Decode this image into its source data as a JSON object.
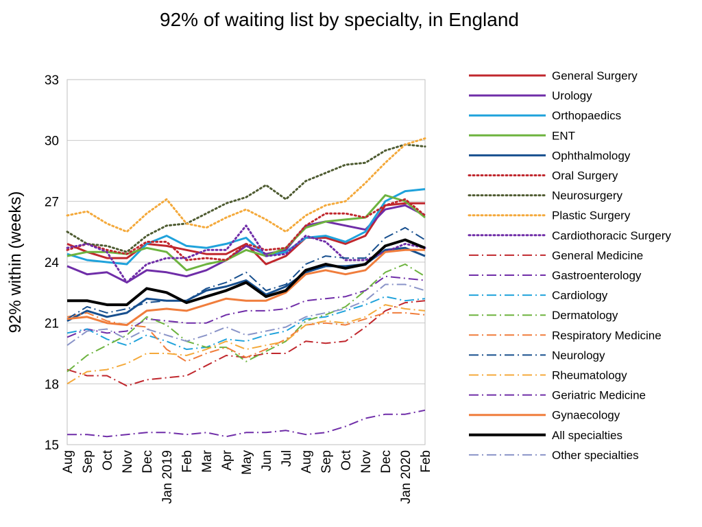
{
  "chart_data": {
    "type": "line",
    "title": "92% of waiting list by specialty, in England",
    "xlabel": "",
    "ylabel": "92% within (weeks)",
    "ylim": [
      15,
      33
    ],
    "yticks": [
      15,
      18,
      21,
      24,
      27,
      30,
      33
    ],
    "grid": "horizontal",
    "legend_position": "right",
    "x": [
      "Aug",
      "Sep",
      "Oct",
      "Nov",
      "Dec",
      "Jan 2019",
      "Feb",
      "Mar",
      "Apr",
      "May",
      "Jun",
      "Jul",
      "Aug",
      "Sep",
      "Oct",
      "Nov",
      "Dec",
      "Jan 2020",
      "Feb"
    ],
    "series": [
      {
        "name": "General Surgery",
        "color": "#C0272D",
        "dash": "solid",
        "width": 3,
        "values": [
          24.9,
          24.5,
          24.2,
          24.2,
          24.9,
          24.8,
          24.6,
          24.4,
          24.4,
          24.9,
          23.9,
          24.3,
          25.2,
          25.2,
          24.9,
          25.3,
          26.8,
          26.9,
          26.9
        ]
      },
      {
        "name": "Urology",
        "color": "#6F2DA8",
        "dash": "solid",
        "width": 3,
        "values": [
          23.8,
          23.4,
          23.5,
          23.0,
          23.6,
          23.5,
          23.3,
          23.6,
          24.1,
          24.8,
          24.4,
          24.6,
          25.8,
          26.0,
          25.8,
          25.6,
          26.6,
          26.8,
          26.3
        ]
      },
      {
        "name": "Orthopaedics",
        "color": "#1FA2DB",
        "dash": "solid",
        "width": 3,
        "values": [
          24.4,
          24.1,
          24.0,
          23.9,
          24.9,
          25.3,
          24.8,
          24.7,
          24.9,
          25.2,
          24.3,
          24.5,
          25.2,
          25.3,
          25.0,
          25.5,
          27.0,
          27.5,
          27.6
        ]
      },
      {
        "name": "ENT",
        "color": "#6DB33F",
        "dash": "solid",
        "width": 3,
        "values": [
          24.3,
          24.5,
          24.5,
          24.4,
          24.7,
          24.5,
          23.6,
          23.9,
          24.1,
          24.6,
          24.3,
          24.7,
          25.7,
          26.0,
          26.1,
          26.2,
          27.3,
          27.0,
          26.2
        ]
      },
      {
        "name": "Ophthalmology",
        "color": "#174F8E",
        "dash": "solid",
        "width": 3,
        "values": [
          21.1,
          21.6,
          21.3,
          21.5,
          22.2,
          22.1,
          22.1,
          22.6,
          22.8,
          23.1,
          22.4,
          22.8,
          23.5,
          23.8,
          23.8,
          23.9,
          24.6,
          24.7,
          24.3
        ]
      },
      {
        "name": "Oral Surgery",
        "color": "#C0272D",
        "dash": "dot",
        "width": 3,
        "values": [
          24.6,
          24.9,
          24.6,
          24.4,
          25.0,
          25.0,
          24.1,
          24.2,
          24.1,
          24.9,
          24.6,
          24.7,
          25.8,
          26.4,
          26.4,
          26.2,
          26.8,
          27.1,
          26.3
        ]
      },
      {
        "name": "Neurosurgery",
        "color": "#4E5B31",
        "dash": "dot",
        "width": 3,
        "values": [
          25.5,
          24.9,
          24.8,
          24.5,
          25.3,
          25.8,
          25.9,
          26.4,
          26.9,
          27.2,
          27.8,
          27.1,
          28.0,
          28.4,
          28.8,
          28.9,
          29.5,
          29.8,
          29.7
        ]
      },
      {
        "name": "Plastic Surgery",
        "color": "#F4A93B",
        "dash": "dot",
        "width": 3,
        "values": [
          26.3,
          26.5,
          25.9,
          25.5,
          26.4,
          27.1,
          25.9,
          25.7,
          26.2,
          26.6,
          26.1,
          25.5,
          26.3,
          26.8,
          27.0,
          27.9,
          28.9,
          29.8,
          30.1
        ]
      },
      {
        "name": "Cardiothoracic Surgery",
        "color": "#6F2DA8",
        "dash": "dot",
        "width": 3,
        "values": [
          24.7,
          24.9,
          24.5,
          23.0,
          23.9,
          24.2,
          24.2,
          24.6,
          24.6,
          25.8,
          24.3,
          24.4,
          25.3,
          25.0,
          24.1,
          24.1,
          24.5,
          24.9,
          24.7
        ]
      },
      {
        "name": "General Medicine",
        "color": "#C0272D",
        "dash": "dashdot",
        "width": 2,
        "values": [
          18.7,
          18.4,
          18.4,
          17.9,
          18.2,
          18.3,
          18.4,
          18.9,
          19.4,
          19.3,
          19.5,
          19.5,
          20.1,
          20.0,
          20.1,
          20.8,
          21.6,
          22.0,
          22.1
        ]
      },
      {
        "name": "Gastroenterology",
        "color": "#6F2DA8",
        "dash": "dashdot",
        "width": 2,
        "values": [
          20.3,
          20.7,
          20.5,
          20.6,
          21.2,
          21.1,
          21.0,
          21.0,
          21.4,
          21.6,
          21.6,
          21.7,
          22.1,
          22.2,
          22.3,
          22.6,
          23.3,
          23.2,
          23.1
        ]
      },
      {
        "name": "Cardiology",
        "color": "#1FA2DB",
        "dash": "dashdot",
        "width": 2,
        "values": [
          20.5,
          20.7,
          20.2,
          19.9,
          20.4,
          20.1,
          19.7,
          19.8,
          20.2,
          20.1,
          20.4,
          20.6,
          21.2,
          21.3,
          21.6,
          21.9,
          22.3,
          22.1,
          22.2
        ]
      },
      {
        "name": "Dermatology",
        "color": "#6DB33F",
        "dash": "dashdot",
        "width": 2,
        "values": [
          18.6,
          19.4,
          19.9,
          20.4,
          21.3,
          20.9,
          20.1,
          19.8,
          19.8,
          19.1,
          19.6,
          20.1,
          21.1,
          21.4,
          21.8,
          22.6,
          23.5,
          23.9,
          23.3
        ]
      },
      {
        "name": "Respiratory Medicine",
        "color": "#F07D3C",
        "dash": "dashdot",
        "width": 2,
        "values": [
          21.3,
          21.5,
          21.1,
          20.9,
          20.8,
          19.7,
          19.1,
          19.5,
          19.8,
          19.3,
          19.7,
          20.2,
          20.9,
          21.0,
          20.9,
          21.2,
          21.5,
          21.5,
          21.4
        ]
      },
      {
        "name": "Neurology",
        "color": "#174F8E",
        "dash": "dashdot",
        "width": 2,
        "values": [
          21.2,
          21.8,
          21.5,
          21.7,
          22.0,
          22.1,
          22.1,
          22.7,
          23.0,
          23.5,
          22.6,
          22.9,
          23.9,
          24.3,
          24.2,
          24.2,
          25.2,
          25.7,
          25.1
        ]
      },
      {
        "name": "Rheumatology",
        "color": "#F4A93B",
        "dash": "dashdot",
        "width": 2,
        "values": [
          18.0,
          18.6,
          18.7,
          19.0,
          19.5,
          19.5,
          19.4,
          19.7,
          20.1,
          19.7,
          19.9,
          20.1,
          20.9,
          21.1,
          21.0,
          21.3,
          21.9,
          21.7,
          21.6
        ]
      },
      {
        "name": "Geriatric Medicine",
        "color": "#6F2DA8",
        "dash": "dashdot",
        "width": 2,
        "values": [
          15.5,
          15.5,
          15.4,
          15.5,
          15.6,
          15.6,
          15.5,
          15.6,
          15.4,
          15.6,
          15.6,
          15.7,
          15.5,
          15.6,
          15.9,
          16.3,
          16.5,
          16.5,
          16.7
        ]
      },
      {
        "name": "Gynaecology",
        "color": "#F07D3C",
        "dash": "solid",
        "width": 3,
        "values": [
          21.2,
          21.3,
          21.0,
          20.9,
          21.6,
          21.7,
          21.6,
          21.9,
          22.2,
          22.1,
          22.1,
          22.5,
          23.4,
          23.6,
          23.4,
          23.6,
          24.5,
          24.6,
          24.6
        ]
      },
      {
        "name": "All specialties",
        "color": "#000000",
        "dash": "solid",
        "width": 4,
        "values": [
          22.1,
          22.1,
          21.9,
          21.9,
          22.7,
          22.5,
          22.0,
          22.3,
          22.6,
          23.0,
          22.3,
          22.6,
          23.6,
          23.9,
          23.7,
          23.9,
          24.8,
          25.1,
          24.7
        ]
      },
      {
        "name": "Other specialties",
        "color": "#8A94C8",
        "dash": "dashdot",
        "width": 2,
        "values": [
          19.9,
          20.6,
          20.7,
          20.2,
          20.7,
          20.4,
          20.1,
          20.4,
          20.8,
          20.4,
          20.6,
          20.8,
          21.3,
          21.5,
          21.7,
          22.1,
          22.9,
          22.9,
          22.6
        ]
      }
    ]
  }
}
